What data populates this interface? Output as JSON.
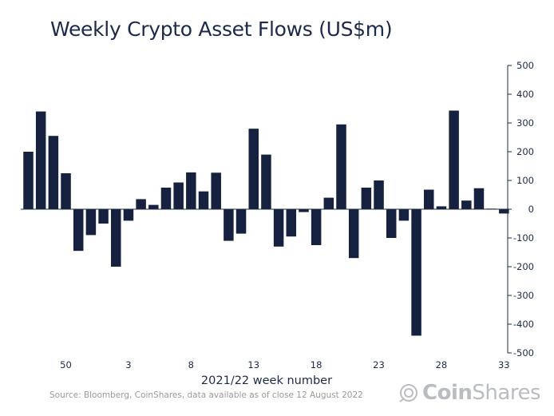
{
  "chart_data": {
    "type": "bar",
    "title": "Weekly Crypto Asset Flows (US$m)",
    "xlabel": "2021/22 week number",
    "ylabel": "",
    "ylim": [
      -500,
      500
    ],
    "yticks": [
      500,
      400,
      300,
      200,
      100,
      0,
      -100,
      -200,
      -300,
      -400,
      -500
    ],
    "y_axis_side": "right",
    "grid": false,
    "bar_color": "#15213f",
    "x_ticks": [
      {
        "index": 3,
        "label": "50"
      },
      {
        "index": 8,
        "label": "3"
      },
      {
        "index": 13,
        "label": "8"
      },
      {
        "index": 18,
        "label": "13"
      },
      {
        "index": 23,
        "label": "18"
      },
      {
        "index": 28,
        "label": "23"
      },
      {
        "index": 33,
        "label": "28"
      },
      {
        "index": 38,
        "label": "33"
      }
    ],
    "values": [
      200,
      340,
      255,
      125,
      -145,
      -90,
      -50,
      -200,
      -40,
      35,
      15,
      75,
      93,
      128,
      62,
      127,
      -110,
      -85,
      280,
      190,
      -130,
      -95,
      -10,
      -125,
      40,
      295,
      -170,
      75,
      100,
      -100,
      -40,
      -440,
      68,
      10,
      343,
      30,
      73,
      2,
      -15
    ]
  },
  "source": "Source: Bloomberg, CoinShares, data available as of close 12 August 2022",
  "brand": {
    "name_bold": "Coin",
    "name_regular": "Shares"
  },
  "colors": {
    "title": "#1b2a4a",
    "axis": "#1b2a4a",
    "source_text": "#9a9a9a",
    "brand": "#b9bcc0"
  }
}
